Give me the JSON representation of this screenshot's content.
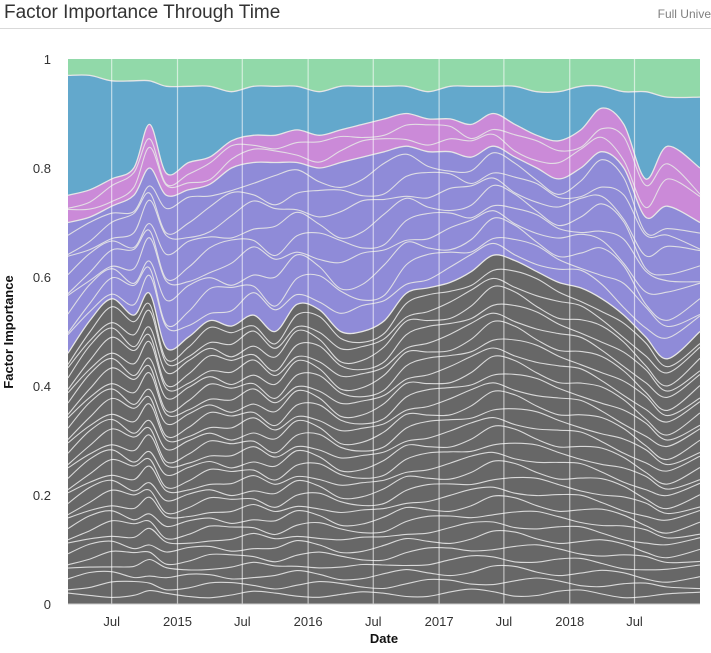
{
  "header": {
    "title": "Factor Importance Through Time",
    "filter_label": "Full Unive"
  },
  "chart_data": {
    "type": "area",
    "stacked": true,
    "title": "Factor Importance Through Time",
    "xlabel": "Date",
    "ylabel": "Factor Importance",
    "ylim": [
      0,
      1
    ],
    "yticks": [
      0,
      0.2,
      0.4,
      0.6,
      0.8,
      1
    ],
    "ytick_labels": [
      "0",
      "0.2",
      "0.4",
      "0.6",
      "0.8",
      "1"
    ],
    "xlim": [
      "2014-03-01",
      "2018-12-31"
    ],
    "xticks": [
      {
        "label": "Jul",
        "date": "2014-07-01"
      },
      {
        "label": "2015",
        "date": "2015-01-01"
      },
      {
        "label": "Jul",
        "date": "2015-07-01"
      },
      {
        "label": "2016",
        "date": "2016-01-01"
      },
      {
        "label": "Jul",
        "date": "2016-07-01"
      },
      {
        "label": "2017",
        "date": "2017-01-01"
      },
      {
        "label": "Jul",
        "date": "2017-07-01"
      },
      {
        "label": "2018",
        "date": "2018-01-01"
      },
      {
        "label": "Jul",
        "date": "2018-07-01"
      }
    ],
    "grid": {
      "x": true,
      "y": false
    },
    "legend": "none",
    "colors": {
      "dark_gray": "#676767",
      "purple": "#8f8bd8",
      "magenta": "#cb8ad8",
      "blue": "#63a8cc",
      "green": "#91d9a9",
      "divider": "#e6e6e6"
    },
    "dates": [
      "2014-03-01",
      "2014-05-01",
      "2014-07-01",
      "2014-09-01",
      "2014-10-15",
      "2014-12-01",
      "2015-02-01",
      "2015-04-01",
      "2015-06-01",
      "2015-08-01",
      "2015-10-01",
      "2015-12-01",
      "2016-02-01",
      "2016-04-01",
      "2016-06-01",
      "2016-08-01",
      "2016-10-01",
      "2016-12-01",
      "2017-02-01",
      "2017-04-01",
      "2017-06-01",
      "2017-08-01",
      "2017-10-01",
      "2017-12-01",
      "2018-02-01",
      "2018-04-01",
      "2018-06-01",
      "2018-08-01",
      "2018-10-01",
      "2018-12-31"
    ],
    "group_tops": {
      "dark_gray": [
        0.46,
        0.52,
        0.56,
        0.53,
        0.57,
        0.47,
        0.49,
        0.52,
        0.51,
        0.53,
        0.5,
        0.55,
        0.54,
        0.5,
        0.5,
        0.52,
        0.57,
        0.58,
        0.59,
        0.61,
        0.64,
        0.63,
        0.61,
        0.59,
        0.58,
        0.56,
        0.53,
        0.49,
        0.45,
        0.5
      ],
      "purple": [
        0.7,
        0.71,
        0.73,
        0.75,
        0.8,
        0.75,
        0.76,
        0.77,
        0.8,
        0.81,
        0.81,
        0.81,
        0.8,
        0.81,
        0.82,
        0.83,
        0.84,
        0.83,
        0.83,
        0.82,
        0.84,
        0.82,
        0.8,
        0.78,
        0.8,
        0.83,
        0.8,
        0.71,
        0.73,
        0.7
      ],
      "magenta": [
        0.75,
        0.76,
        0.78,
        0.8,
        0.88,
        0.79,
        0.81,
        0.82,
        0.85,
        0.86,
        0.86,
        0.87,
        0.86,
        0.87,
        0.88,
        0.89,
        0.9,
        0.89,
        0.89,
        0.88,
        0.9,
        0.88,
        0.86,
        0.85,
        0.87,
        0.91,
        0.88,
        0.78,
        0.84,
        0.8
      ],
      "blue": [
        0.97,
        0.97,
        0.96,
        0.96,
        0.96,
        0.95,
        0.95,
        0.95,
        0.94,
        0.95,
        0.95,
        0.95,
        0.94,
        0.95,
        0.95,
        0.95,
        0.95,
        0.94,
        0.95,
        0.95,
        0.95,
        0.95,
        0.94,
        0.94,
        0.95,
        0.95,
        0.94,
        0.94,
        0.93,
        0.93
      ],
      "green": [
        1,
        1,
        1,
        1,
        1,
        1,
        1,
        1,
        1,
        1,
        1,
        1,
        1,
        1,
        1,
        1,
        1,
        1,
        1,
        1,
        1,
        1,
        1,
        1,
        1,
        1,
        1,
        1,
        1,
        1
      ]
    },
    "series_counts": {
      "dark_gray": 30,
      "purple": 10,
      "magenta": 3,
      "blue": 1,
      "green": 1
    }
  }
}
